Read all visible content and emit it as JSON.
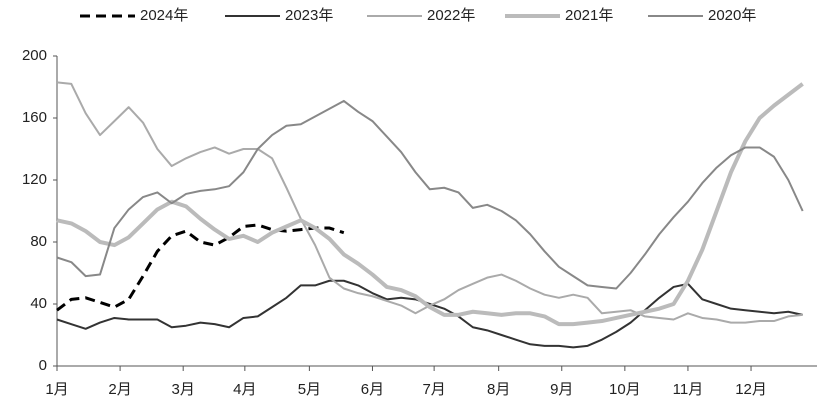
{
  "chart_data": {
    "type": "line",
    "x": [
      0,
      1,
      2,
      3,
      4,
      5,
      6,
      7,
      8,
      9,
      10,
      11,
      12,
      13,
      14,
      15,
      16,
      17,
      18,
      19,
      20,
      21,
      22,
      23,
      24,
      25,
      26,
      27,
      28,
      29,
      30,
      31,
      32,
      33,
      34,
      35,
      36,
      37,
      38,
      39,
      40,
      41,
      42,
      43,
      44,
      45,
      46,
      47,
      48,
      49,
      50,
      51,
      52
    ],
    "xlim": [
      0,
      53
    ],
    "xticks": [
      {
        "value": 0,
        "label": "1月"
      },
      {
        "value": 4.4,
        "label": "2月"
      },
      {
        "value": 8.8,
        "label": "3月"
      },
      {
        "value": 13.1,
        "label": "4月"
      },
      {
        "value": 17.6,
        "label": "5月"
      },
      {
        "value": 22,
        "label": "6月"
      },
      {
        "value": 26.3,
        "label": "7月"
      },
      {
        "value": 30.8,
        "label": "8月"
      },
      {
        "value": 35.2,
        "label": "9月"
      },
      {
        "value": 39.6,
        "label": "10月"
      },
      {
        "value": 44,
        "label": "11月"
      },
      {
        "value": 48.4,
        "label": "12月"
      }
    ],
    "ylim": [
      0,
      200
    ],
    "yticks": [
      0,
      40,
      80,
      120,
      160,
      200
    ],
    "series": [
      {
        "name": "2024年",
        "color": "#000000",
        "dashed": true,
        "width": 3,
        "values": [
          36,
          43,
          44,
          41,
          38,
          43,
          58,
          74,
          84,
          87,
          80,
          78,
          83,
          90,
          91,
          88,
          87,
          88,
          89,
          89,
          86,
          null,
          null,
          null,
          null,
          null,
          null,
          null,
          null,
          null,
          null,
          null,
          null,
          null,
          null,
          null,
          null,
          null,
          null,
          null,
          null,
          null,
          null,
          null,
          null,
          null,
          null,
          null,
          null,
          null,
          null,
          null,
          null
        ]
      },
      {
        "name": "2023年",
        "color": "#333333",
        "dashed": false,
        "width": 2,
        "values": [
          30,
          27,
          24,
          28,
          31,
          30,
          30,
          30,
          25,
          26,
          28,
          27,
          25,
          31,
          32,
          38,
          44,
          52,
          52,
          55,
          55,
          52,
          47,
          43,
          44,
          43,
          40,
          37,
          32,
          25,
          23,
          20,
          17,
          14,
          13,
          13,
          12,
          13,
          17,
          22,
          28,
          36,
          44,
          51,
          53,
          43,
          40,
          37,
          36,
          35,
          34,
          35,
          33
        ]
      },
      {
        "name": "2022年",
        "color": "#aaaaaa",
        "dashed": false,
        "width": 2,
        "values": [
          183,
          182,
          163,
          149,
          158,
          167,
          157,
          140,
          129,
          134,
          138,
          141,
          137,
          140,
          140,
          134,
          115,
          95,
          78,
          57,
          50,
          47,
          45,
          42,
          39,
          34,
          39,
          43,
          49,
          53,
          57,
          59,
          55,
          50,
          46,
          44,
          46,
          44,
          34,
          35,
          36,
          32,
          31,
          30,
          34,
          31,
          30,
          28,
          28,
          29,
          29,
          32,
          33
        ]
      },
      {
        "name": "2021年",
        "color": "#bbbbbb",
        "dashed": false,
        "width": 4,
        "values": [
          94,
          92,
          87,
          80,
          78,
          83,
          92,
          101,
          106,
          103,
          95,
          88,
          82,
          84,
          80,
          86,
          90,
          94,
          89,
          82,
          72,
          66,
          59,
          51,
          49,
          45,
          38,
          33,
          33,
          35,
          34,
          33,
          34,
          34,
          32,
          27,
          27,
          28,
          29,
          31,
          33,
          35,
          37,
          40,
          55,
          75,
          100,
          125,
          145,
          160,
          168,
          175,
          182
        ]
      },
      {
        "name": "2020年",
        "color": "#888888",
        "dashed": false,
        "width": 2,
        "values": [
          70,
          67,
          58,
          59,
          89,
          101,
          109,
          112,
          105,
          111,
          113,
          114,
          116,
          125,
          140,
          149,
          155,
          156,
          161,
          166,
          171,
          164,
          158,
          148,
          138,
          125,
          114,
          115,
          112,
          102,
          104,
          100,
          94,
          85,
          74,
          64,
          58,
          52,
          51,
          50,
          60,
          72,
          85,
          96,
          106,
          118,
          128,
          136,
          141,
          141,
          135,
          120,
          100
        ]
      }
    ]
  }
}
